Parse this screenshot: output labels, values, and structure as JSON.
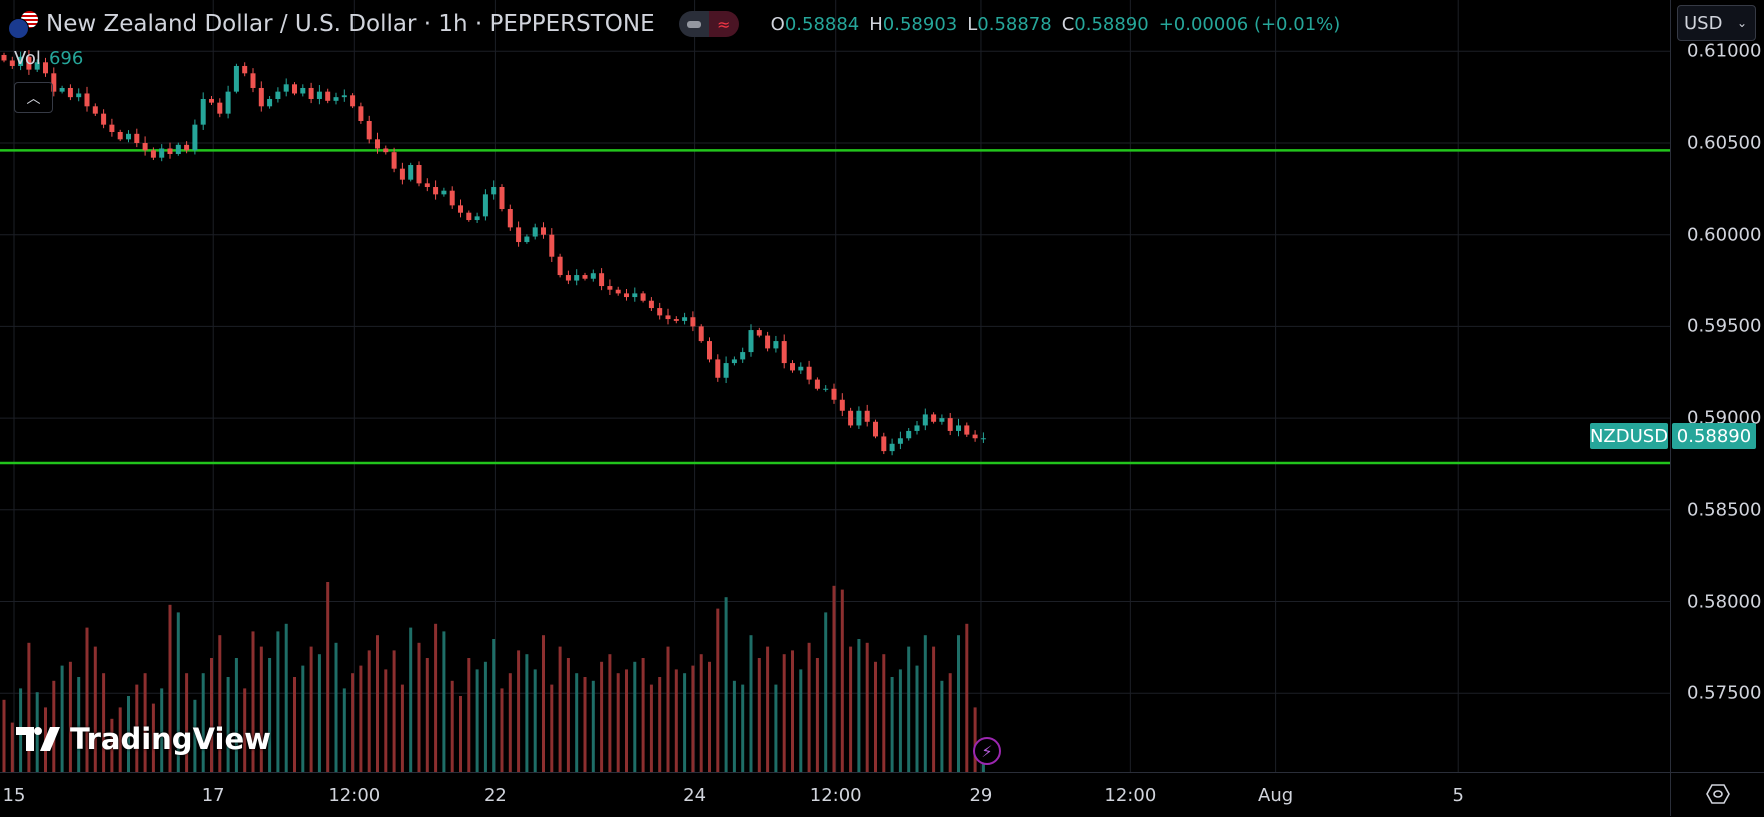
{
  "header": {
    "title": "New Zealand Dollar / U.S. Dollar · 1h · PEPPERSTONE",
    "toggle_icon": "≈",
    "ohlc": [
      {
        "k": "O",
        "v": "0.58884"
      },
      {
        "k": "H",
        "v": "0.58903"
      },
      {
        "k": "L",
        "v": "0.58878"
      },
      {
        "k": "C",
        "v": "0.58890"
      },
      {
        "k": "",
        "v": "+0.00006 (+0.01%)"
      }
    ]
  },
  "volume_legend": {
    "label": "Vol",
    "value": "696"
  },
  "currency_select": "USD",
  "symbol_label": "NZDUSD",
  "last_price": "0.58890",
  "colors": {
    "up": "#26a69a",
    "down": "#ef5350",
    "vol_up": "#1e6e67",
    "vol_down": "#8c2f2f",
    "hline": "#22c41c",
    "grid": "#1c1f26"
  },
  "logo": "TradingView",
  "chart_data": {
    "type": "candlestick",
    "symbol": "NZDUSD",
    "interval": "1h",
    "ylim": [
      0.5715,
      0.6115
    ],
    "y_ticks": [
      "0.61000",
      "0.60500",
      "0.60000",
      "0.59500",
      "0.59000",
      "0.58500",
      "0.58000",
      "0.57500"
    ],
    "x_ticks": [
      {
        "label": "15",
        "bar": 0
      },
      {
        "label": "17",
        "bar": 24
      },
      {
        "label": "12:00",
        "bar": 41
      },
      {
        "label": "22",
        "bar": 58
      },
      {
        "label": "24",
        "bar": 82
      },
      {
        "label": "12:00",
        "bar": 99
      },
      {
        "label": "29",
        "bar": 116.5
      },
      {
        "label": "12:00",
        "bar": 134.5
      },
      {
        "label": "Aug",
        "bar": 152
      },
      {
        "label": "5",
        "bar": 174
      }
    ],
    "horizontal_lines": [
      0.6046,
      0.58755
    ],
    "open_first": 0.6098,
    "closes": [
      0.6095,
      0.6092,
      0.6097,
      0.609,
      0.6094,
      0.6088,
      0.6078,
      0.608,
      0.6075,
      0.6077,
      0.607,
      0.6066,
      0.606,
      0.6056,
      0.6052,
      0.6055,
      0.605,
      0.6046,
      0.6042,
      0.6047,
      0.6044,
      0.6049,
      0.6046,
      0.606,
      0.6074,
      0.6072,
      0.6066,
      0.6078,
      0.6092,
      0.6088,
      0.608,
      0.607,
      0.6074,
      0.6078,
      0.6082,
      0.6077,
      0.608,
      0.6074,
      0.6078,
      0.6073,
      0.6075,
      0.6076,
      0.607,
      0.6062,
      0.6052,
      0.6047,
      0.6045,
      0.6036,
      0.603,
      0.6038,
      0.6028,
      0.6026,
      0.6022,
      0.6024,
      0.6016,
      0.6012,
      0.6008,
      0.601,
      0.6022,
      0.6026,
      0.6014,
      0.6004,
      0.5996,
      0.5999,
      0.6004,
      0.6,
      0.5988,
      0.5978,
      0.5975,
      0.5978,
      0.5976,
      0.5979,
      0.5972,
      0.597,
      0.5968,
      0.5966,
      0.5968,
      0.5964,
      0.596,
      0.5956,
      0.5954,
      0.5953,
      0.5955,
      0.595,
      0.5942,
      0.5932,
      0.5922,
      0.593,
      0.5932,
      0.5936,
      0.5948,
      0.5945,
      0.5938,
      0.5942,
      0.593,
      0.5926,
      0.5928,
      0.5921,
      0.5916,
      0.5916,
      0.591,
      0.5904,
      0.5896,
      0.5904,
      0.5898,
      0.589,
      0.5882,
      0.5886,
      0.5889,
      0.5893,
      0.5896,
      0.5902,
      0.5898,
      0.59,
      0.5893,
      0.5896,
      0.5891,
      0.5889,
      0.5889
    ],
    "volumes": [
      1900,
      1300,
      2200,
      3400,
      2100,
      1700,
      2400,
      2800,
      2900,
      2500,
      3800,
      3300,
      2600,
      1400,
      1700,
      2000,
      2300,
      2600,
      1800,
      2200,
      4400,
      4200,
      2600,
      1900,
      2600,
      3000,
      3600,
      2500,
      3000,
      2200,
      3700,
      3300,
      3000,
      3700,
      3900,
      2500,
      2800,
      3300,
      3100,
      5000,
      3400,
      2200,
      2600,
      2800,
      3200,
      3600,
      2700,
      3200,
      2300,
      3800,
      3400,
      3000,
      3900,
      3700,
      2400,
      2000,
      3000,
      2700,
      2900,
      3500,
      2200,
      2600,
      3200,
      3100,
      2700,
      3600,
      2300,
      3300,
      3000,
      2600,
      2500,
      2400,
      2900,
      3100,
      2600,
      2700,
      2900,
      3000,
      2300,
      2500,
      3300,
      2700,
      2600,
      2800,
      3100,
      2900,
      4300,
      4600,
      2400,
      2300,
      3600,
      3000,
      3300,
      2300,
      3100,
      3200,
      2700,
      3400,
      3000,
      4200,
      4900,
      4800,
      3300,
      3500,
      3400,
      2900,
      3100,
      2500,
      2700,
      3300,
      2800,
      3600,
      3300,
      2400,
      2600,
      3600,
      3900,
      1700,
      696
    ]
  }
}
